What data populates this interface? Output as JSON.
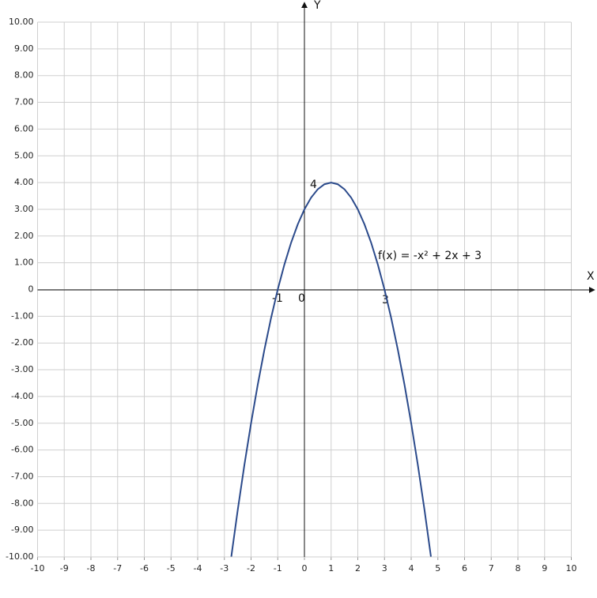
{
  "chart_data": {
    "type": "line",
    "x_label": "X",
    "y_label": "Y",
    "xlim": [
      -10,
      10
    ],
    "ylim": [
      -10,
      10
    ],
    "xticks": [
      -10,
      -9,
      -8,
      -7,
      -6,
      -5,
      -4,
      -3,
      -2,
      -1,
      0,
      1,
      2,
      3,
      4,
      5,
      6,
      7,
      8,
      9,
      10
    ],
    "yticks": [
      {
        "value": 10,
        "label": "10.00"
      },
      {
        "value": 9,
        "label": "9.00"
      },
      {
        "value": 8,
        "label": "8.00"
      },
      {
        "value": 7,
        "label": "7.00"
      },
      {
        "value": 6,
        "label": "6.00"
      },
      {
        "value": 5,
        "label": "5.00"
      },
      {
        "value": 4,
        "label": "4.00"
      },
      {
        "value": 3,
        "label": "3.00"
      },
      {
        "value": 2,
        "label": "2.00"
      },
      {
        "value": 1,
        "label": "1.00"
      },
      0,
      {
        "value": -1,
        "label": "-1.00"
      },
      {
        "value": -2,
        "label": "-2.00"
      },
      {
        "value": -3,
        "label": "-3.00"
      },
      {
        "value": -4,
        "label": "-4.00"
      },
      {
        "value": -5,
        "label": "-5.00"
      },
      {
        "value": -6,
        "label": "-6.00"
      },
      {
        "value": -7,
        "label": "-7.00"
      },
      {
        "value": -8,
        "label": "-8.00"
      },
      {
        "value": -9,
        "label": "-9.00"
      },
      {
        "value": -10,
        "label": "-10.00"
      }
    ],
    "grid": true,
    "x": [
      -2.74,
      -2.5,
      -2.25,
      -2,
      -1.75,
      -1.5,
      -1.25,
      -1,
      -0.75,
      -0.5,
      -0.25,
      0,
      0.25,
      0.5,
      0.75,
      1,
      1.25,
      1.5,
      1.75,
      2,
      2.25,
      2.5,
      2.75,
      3,
      3.25,
      3.5,
      3.75,
      4,
      4.25,
      4.5,
      4.74
    ],
    "series": [
      {
        "name": "f(x) = -x² + 2x + 3",
        "color": "#2b4a8b",
        "values": [
          -9.99,
          -8.25,
          -6.5625,
          -5,
          -3.5625,
          -2.25,
          -1.0625,
          0,
          0.9375,
          1.75,
          2.4375,
          3,
          3.4375,
          3.75,
          3.9375,
          4,
          3.9375,
          3.75,
          3.4375,
          3,
          2.4375,
          1.75,
          0.9375,
          0,
          -1.0625,
          -2.25,
          -3.5625,
          -5,
          -6.5625,
          -8.25,
          -9.99
        ]
      }
    ],
    "annotations": [
      "4",
      "-1",
      "0",
      "3"
    ]
  }
}
